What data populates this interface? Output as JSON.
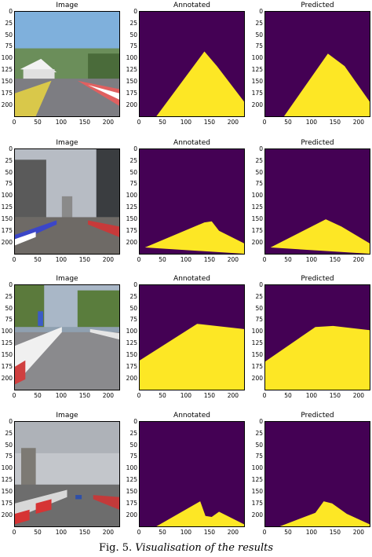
{
  "figure": {
    "caption_label": "Fig. 5.",
    "caption_text": "Visualisation of the results"
  },
  "colors": {
    "mask_background": "#440154",
    "mask_road": "#fde725"
  },
  "axes": {
    "y_ticks": [
      "0",
      "25",
      "50",
      "75",
      "100",
      "125",
      "150",
      "175",
      "200"
    ],
    "x_ticks_image_row1": [
      "0",
      "50",
      "100",
      "150",
      "200"
    ],
    "x_ticks": [
      "0",
      "50",
      "100",
      "150",
      "200"
    ]
  },
  "rows": [
    {
      "image_title": "Image",
      "annotated_title": "Annotated",
      "predicted_title": "Predicted",
      "scene": "sunny street circuit with white tent and red-white barriers"
    },
    {
      "image_title": "Image",
      "annotated_title": "Annotated",
      "predicted_title": "Predicted",
      "scene": "cloudy street under overpass with red-white-blue barriers"
    },
    {
      "image_title": "Image",
      "annotated_title": "Annotated",
      "predicted_title": "Predicted",
      "scene": "tree-lined road with white barriers and flags"
    },
    {
      "image_title": "Image",
      "annotated_title": "Annotated",
      "predicted_title": "Predicted",
      "scene": "overcast road with tower block and red-white barriers"
    }
  ]
}
